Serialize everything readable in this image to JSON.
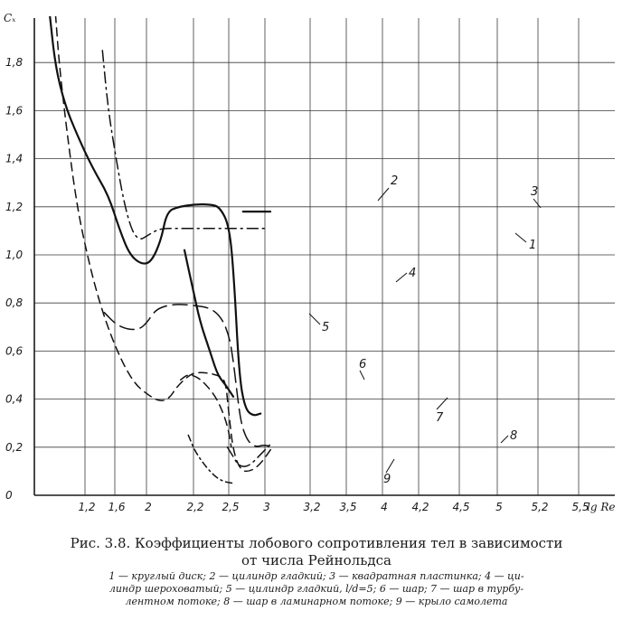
{
  "chart_data": {
    "type": "line",
    "ylabel": "Cₓ",
    "xlabel": "lg Re",
    "ylim": [
      0,
      2.0
    ],
    "grid": true,
    "x_tick_labels": [
      "1,2",
      "1,6",
      "2",
      "2,2",
      "2,5",
      "3",
      "3,2",
      "3,5",
      "4",
      "4,2",
      "4,5",
      "5",
      "5,2",
      "5,5"
    ],
    "y_tick_labels": [
      "0",
      "0,2",
      "0,4",
      "0,6",
      "0,8",
      "1,0",
      "1,2",
      "1,4",
      "1,6",
      "1,8"
    ],
    "y_ticks": [
      0,
      0.2,
      0.4,
      0.6,
      0.8,
      1.0,
      1.2,
      1.4,
      1.6,
      1.8
    ],
    "series": [
      {
        "name": "1",
        "style": "dashdot",
        "points": [
          [
            1.65,
            1.85
          ],
          [
            1.8,
            1.6
          ],
          [
            2.0,
            1.4
          ],
          [
            2.2,
            1.22
          ],
          [
            2.4,
            1.1
          ],
          [
            2.6,
            1.06
          ],
          [
            2.8,
            1.08
          ],
          [
            3.0,
            1.1
          ],
          [
            3.2,
            1.11
          ],
          [
            3.5,
            1.11
          ],
          [
            4.0,
            1.11
          ],
          [
            4.5,
            1.11
          ],
          [
            5.0,
            1.11
          ],
          [
            5.5,
            1.11
          ],
          [
            5.9,
            1.11
          ]
        ]
      },
      {
        "name": "2",
        "style": "solid",
        "points": [
          [
            0.3,
            2.0
          ],
          [
            0.45,
            1.78
          ],
          [
            0.7,
            1.62
          ],
          [
            1.0,
            1.5
          ],
          [
            1.4,
            1.36
          ],
          [
            1.8,
            1.25
          ],
          [
            2.1,
            1.1
          ],
          [
            2.35,
            1.0
          ],
          [
            2.65,
            0.96
          ],
          [
            2.9,
            0.97
          ],
          [
            3.15,
            1.06
          ],
          [
            3.3,
            1.18
          ],
          [
            3.6,
            1.2
          ],
          [
            4.0,
            1.21
          ],
          [
            4.4,
            1.21
          ],
          [
            4.65,
            1.2
          ],
          [
            4.9,
            1.12
          ],
          [
            5.02,
            0.9
          ],
          [
            5.15,
            0.5
          ],
          [
            5.3,
            0.36
          ],
          [
            5.5,
            0.33
          ],
          [
            5.7,
            0.34
          ]
        ]
      },
      {
        "name": "3",
        "style": "solid",
        "points": [
          [
            5.25,
            1.18
          ],
          [
            5.95,
            1.18
          ]
        ]
      },
      {
        "name": "4",
        "style": "solid",
        "points": [
          [
            3.75,
            1.02
          ],
          [
            3.95,
            0.87
          ],
          [
            4.15,
            0.72
          ],
          [
            4.4,
            0.6
          ],
          [
            4.6,
            0.5
          ],
          [
            4.8,
            0.46
          ],
          [
            5.0,
            0.41
          ]
        ]
      },
      {
        "name": "5",
        "style": "longdash",
        "points": [
          [
            1.7,
            0.76
          ],
          [
            2.0,
            0.71
          ],
          [
            2.3,
            0.69
          ],
          [
            2.6,
            0.69
          ],
          [
            2.8,
            0.72
          ],
          [
            3.0,
            0.77
          ],
          [
            3.3,
            0.79
          ],
          [
            3.6,
            0.795
          ],
          [
            4.0,
            0.79
          ],
          [
            4.4,
            0.78
          ],
          [
            4.7,
            0.74
          ],
          [
            4.9,
            0.66
          ],
          [
            5.0,
            0.56
          ],
          [
            5.1,
            0.42
          ],
          [
            5.2,
            0.3
          ],
          [
            5.35,
            0.23
          ],
          [
            5.55,
            0.2
          ],
          [
            5.8,
            0.21
          ],
          [
            6.0,
            0.2
          ]
        ]
      },
      {
        "name": "6",
        "style": "dashed",
        "points": [
          [
            0.45,
            2.0
          ],
          [
            0.55,
            1.78
          ],
          [
            0.75,
            1.5
          ],
          [
            1.0,
            1.2
          ],
          [
            1.3,
            0.97
          ],
          [
            1.6,
            0.79
          ],
          [
            1.9,
            0.65
          ],
          [
            2.2,
            0.54
          ],
          [
            2.5,
            0.46
          ],
          [
            2.8,
            0.42
          ],
          [
            3.1,
            0.39
          ],
          [
            3.35,
            0.4
          ],
          [
            3.55,
            0.45
          ],
          [
            3.8,
            0.49
          ],
          [
            4.0,
            0.51
          ],
          [
            4.3,
            0.51
          ],
          [
            4.6,
            0.5
          ],
          [
            4.8,
            0.48
          ],
          [
            4.88,
            0.35
          ],
          [
            5.0,
            0.18
          ],
          [
            5.2,
            0.1
          ],
          [
            5.45,
            0.1
          ],
          [
            5.7,
            0.13
          ],
          [
            6.0,
            0.2
          ]
        ]
      },
      {
        "name": "7",
        "style": "dashed",
        "points": [
          [
            3.65,
            0.48
          ],
          [
            3.85,
            0.505
          ],
          [
            4.1,
            0.49
          ],
          [
            4.3,
            0.46
          ],
          [
            4.55,
            0.41
          ],
          [
            4.75,
            0.34
          ],
          [
            4.88,
            0.27
          ],
          [
            4.95,
            0.2
          ]
        ]
      },
      {
        "name": "8",
        "style": "dashdot",
        "points": [
          [
            4.85,
            0.2
          ],
          [
            5.0,
            0.16
          ],
          [
            5.15,
            0.12
          ],
          [
            5.4,
            0.12
          ],
          [
            5.7,
            0.17
          ],
          [
            6.0,
            0.22
          ]
        ]
      },
      {
        "name": "9",
        "style": "dashdotted-short",
        "points": [
          [
            3.85,
            0.25
          ],
          [
            4.0,
            0.19
          ],
          [
            4.2,
            0.14
          ],
          [
            4.4,
            0.1
          ],
          [
            4.6,
            0.07
          ],
          [
            4.8,
            0.055
          ],
          [
            5.0,
            0.05
          ]
        ]
      }
    ],
    "curve_numbers": [
      "1",
      "2",
      "3",
      "4",
      "5",
      "6",
      "7",
      "8",
      "9"
    ]
  },
  "caption": {
    "title_line1": "Рис. 3.8. Коэффициенты лобового сопротивления тел в зависимости",
    "title_line2": "от числа Рейнольдса",
    "legend_line1": "1 — круглый диск; 2 — цилиндр гладкий; 3 — квадратная пластинка; 4 — ци-",
    "legend_line2": "линдр шероховатый; 5 — цилиндр гладкий, l/d=5; 6 — шар; 7 — шар в турбу-",
    "legend_line3": "лентном потоке; 8 — шар в ламинарном потоке; 9 — крыло самолета"
  }
}
